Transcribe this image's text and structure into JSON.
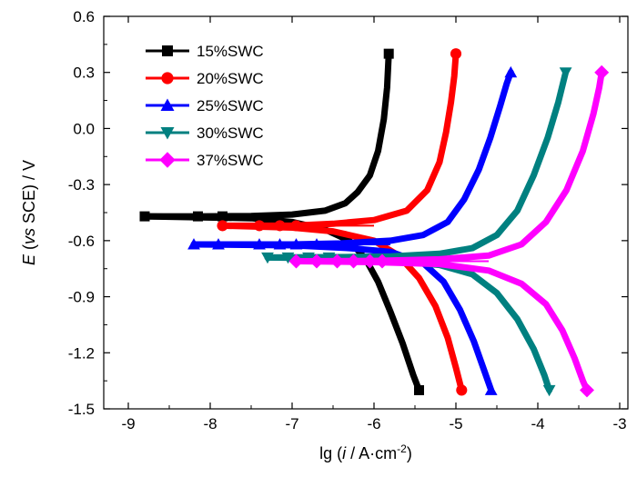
{
  "chart_data": {
    "type": "line",
    "xlabel_parts": [
      "lg (",
      "i",
      " / A·cm",
      "-2",
      ")"
    ],
    "ylabel_parts": [
      "E",
      " (",
      "vs",
      " SCE) / V"
    ],
    "xlim": [
      -9.3,
      -2.9
    ],
    "ylim": [
      -1.5,
      0.6
    ],
    "xticks": [
      -9,
      -8,
      -7,
      -6,
      -5,
      -4,
      -3
    ],
    "xtick_labels": [
      "-9",
      "-8",
      "-7",
      "-6",
      "-5",
      "-4",
      "-3"
    ],
    "yticks": [
      -1.5,
      -1.2,
      -0.9,
      -0.6,
      -0.3,
      0.0,
      0.3,
      0.6
    ],
    "ytick_labels": [
      "-1.5",
      "-1.2",
      "-0.9",
      "-0.6",
      "-0.3",
      "0.0",
      "0.3",
      "0.6"
    ],
    "grid": false,
    "legend_position": "top-left",
    "series": [
      {
        "name": "15%SWC",
        "color": "#000000",
        "marker": "square",
        "ecorr": -0.47,
        "anodic": [
          [
            -8.8,
            -0.47
          ],
          [
            -8.1,
            -0.47
          ],
          [
            -7.5,
            -0.468
          ],
          [
            -7.0,
            -0.46
          ],
          [
            -6.6,
            -0.44
          ],
          [
            -6.35,
            -0.4
          ],
          [
            -6.2,
            -0.34
          ],
          [
            -6.05,
            -0.25
          ],
          [
            -5.95,
            -0.12
          ],
          [
            -5.88,
            0.05
          ],
          [
            -5.84,
            0.22
          ],
          [
            -5.82,
            0.4
          ]
        ],
        "cathodic": [
          [
            -8.8,
            -0.47
          ],
          [
            -7.5,
            -0.48
          ],
          [
            -7.0,
            -0.5
          ],
          [
            -6.6,
            -0.54
          ],
          [
            -6.3,
            -0.6
          ],
          [
            -6.1,
            -0.7
          ],
          [
            -5.95,
            -0.82
          ],
          [
            -5.8,
            -0.98
          ],
          [
            -5.65,
            -1.15
          ],
          [
            -5.52,
            -1.32
          ],
          [
            -5.45,
            -1.4
          ]
        ],
        "markers": [
          [
            -8.8,
            -0.47
          ],
          [
            -8.15,
            -0.47
          ],
          [
            -7.85,
            -0.47
          ],
          [
            -5.82,
            0.4
          ],
          [
            -5.45,
            -1.4
          ]
        ]
      },
      {
        "name": "20%SWC",
        "color": "#ff0000",
        "marker": "circle",
        "ecorr": -0.52,
        "anodic": [
          [
            -7.85,
            -0.52
          ],
          [
            -7.0,
            -0.52
          ],
          [
            -6.5,
            -0.51
          ],
          [
            -6.0,
            -0.49
          ],
          [
            -5.6,
            -0.44
          ],
          [
            -5.35,
            -0.33
          ],
          [
            -5.2,
            -0.18
          ],
          [
            -5.12,
            -0.02
          ],
          [
            -5.06,
            0.14
          ],
          [
            -5.02,
            0.28
          ],
          [
            -5.0,
            0.4
          ]
        ],
        "cathodic": [
          [
            -7.85,
            -0.52
          ],
          [
            -7.0,
            -0.53
          ],
          [
            -6.5,
            -0.55
          ],
          [
            -6.0,
            -0.6
          ],
          [
            -5.7,
            -0.68
          ],
          [
            -5.45,
            -0.8
          ],
          [
            -5.25,
            -0.95
          ],
          [
            -5.1,
            -1.12
          ],
          [
            -5.0,
            -1.28
          ],
          [
            -4.93,
            -1.4
          ]
        ],
        "markers": [
          [
            -7.85,
            -0.52
          ],
          [
            -7.4,
            -0.52
          ],
          [
            -7.15,
            -0.52
          ],
          [
            -6.95,
            -0.52
          ],
          [
            -5.0,
            0.4
          ],
          [
            -4.93,
            -1.4
          ]
        ]
      },
      {
        "name": "25%SWC",
        "color": "#0000ff",
        "marker": "triangle-up",
        "ecorr": -0.62,
        "anodic": [
          [
            -8.2,
            -0.62
          ],
          [
            -7.0,
            -0.62
          ],
          [
            -6.4,
            -0.615
          ],
          [
            -5.8,
            -0.6
          ],
          [
            -5.4,
            -0.57
          ],
          [
            -5.1,
            -0.5
          ],
          [
            -4.9,
            -0.38
          ],
          [
            -4.72,
            -0.22
          ],
          [
            -4.58,
            -0.05
          ],
          [
            -4.46,
            0.12
          ],
          [
            -4.38,
            0.24
          ],
          [
            -4.33,
            0.3
          ]
        ],
        "cathodic": [
          [
            -8.2,
            -0.62
          ],
          [
            -7.0,
            -0.625
          ],
          [
            -6.3,
            -0.64
          ],
          [
            -5.8,
            -0.66
          ],
          [
            -5.4,
            -0.72
          ],
          [
            -5.15,
            -0.82
          ],
          [
            -4.95,
            -0.97
          ],
          [
            -4.78,
            -1.14
          ],
          [
            -4.65,
            -1.3
          ],
          [
            -4.57,
            -1.4
          ]
        ],
        "markers": [
          [
            -8.2,
            -0.62
          ],
          [
            -7.9,
            -0.62
          ],
          [
            -7.4,
            -0.62
          ],
          [
            -7.15,
            -0.62
          ],
          [
            -6.95,
            -0.62
          ],
          [
            -6.7,
            -0.62
          ],
          [
            -4.33,
            0.3
          ],
          [
            -4.57,
            -1.4
          ]
        ]
      },
      {
        "name": "30%SWC",
        "color": "#008080",
        "marker": "triangle-down",
        "ecorr": -0.69,
        "anodic": [
          [
            -7.3,
            -0.69
          ],
          [
            -6.5,
            -0.688
          ],
          [
            -5.8,
            -0.685
          ],
          [
            -5.2,
            -0.67
          ],
          [
            -4.8,
            -0.64
          ],
          [
            -4.5,
            -0.57
          ],
          [
            -4.25,
            -0.44
          ],
          [
            -4.05,
            -0.25
          ],
          [
            -3.88,
            -0.05
          ],
          [
            -3.75,
            0.14
          ],
          [
            -3.66,
            0.3
          ]
        ],
        "cathodic": [
          [
            -7.3,
            -0.69
          ],
          [
            -6.5,
            -0.695
          ],
          [
            -5.8,
            -0.705
          ],
          [
            -5.2,
            -0.73
          ],
          [
            -4.8,
            -0.78
          ],
          [
            -4.5,
            -0.88
          ],
          [
            -4.25,
            -1.02
          ],
          [
            -4.05,
            -1.18
          ],
          [
            -3.92,
            -1.32
          ],
          [
            -3.86,
            -1.4
          ]
        ],
        "markers": [
          [
            -7.3,
            -0.69
          ],
          [
            -7.05,
            -0.69
          ],
          [
            -6.8,
            -0.69
          ],
          [
            -6.55,
            -0.69
          ],
          [
            -3.66,
            0.3
          ],
          [
            -3.86,
            -1.4
          ]
        ]
      },
      {
        "name": "37%SWC",
        "color": "#ff00ff",
        "marker": "diamond",
        "ecorr": -0.71,
        "anodic": [
          [
            -6.95,
            -0.71
          ],
          [
            -6.0,
            -0.708
          ],
          [
            -5.2,
            -0.7
          ],
          [
            -4.6,
            -0.68
          ],
          [
            -4.2,
            -0.62
          ],
          [
            -3.9,
            -0.5
          ],
          [
            -3.65,
            -0.33
          ],
          [
            -3.45,
            -0.12
          ],
          [
            -3.32,
            0.08
          ],
          [
            -3.25,
            0.22
          ],
          [
            -3.22,
            0.3
          ]
        ],
        "cathodic": [
          [
            -6.95,
            -0.71
          ],
          [
            -6.0,
            -0.715
          ],
          [
            -5.2,
            -0.725
          ],
          [
            -4.6,
            -0.76
          ],
          [
            -4.2,
            -0.83
          ],
          [
            -3.9,
            -0.94
          ],
          [
            -3.7,
            -1.08
          ],
          [
            -3.55,
            -1.23
          ],
          [
            -3.45,
            -1.35
          ],
          [
            -3.4,
            -1.4
          ]
        ],
        "markers": [
          [
            -6.95,
            -0.71
          ],
          [
            -6.7,
            -0.71
          ],
          [
            -6.45,
            -0.71
          ],
          [
            -6.25,
            -0.71
          ],
          [
            -6.05,
            -0.71
          ],
          [
            -5.9,
            -0.71
          ],
          [
            -3.22,
            0.3
          ],
          [
            -3.4,
            -1.4
          ]
        ]
      }
    ]
  }
}
